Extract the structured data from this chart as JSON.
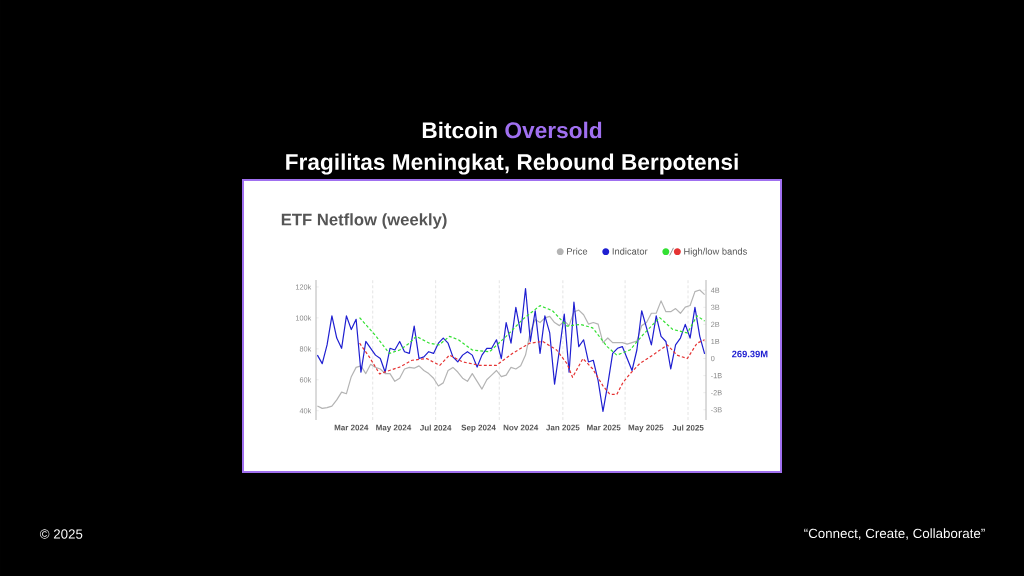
{
  "chart_data": {
    "type": "line",
    "title": "ETF Netflow (weekly)",
    "annotations": [
      "Bitcoin",
      "Oversold",
      "Fragilitas Meningkat, Rebound Berpotensi",
      "© 2025",
      "“Connect, Create, Collaborate”",
      "269.39M"
    ],
    "x": [
      "2024-01-12",
      "2024-01-19",
      "2024-01-26",
      "2024-02-02",
      "2024-02-09",
      "2024-02-16",
      "2024-02-23",
      "2024-03-01",
      "2024-03-08",
      "2024-03-15",
      "2024-03-22",
      "2024-03-29",
      "2024-04-05",
      "2024-04-12",
      "2024-04-19",
      "2024-04-26",
      "2024-05-03",
      "2024-05-10",
      "2024-05-17",
      "2024-05-24",
      "2024-05-31",
      "2024-06-07",
      "2024-06-14",
      "2024-06-21",
      "2024-06-28",
      "2024-07-05",
      "2024-07-12",
      "2024-07-19",
      "2024-07-26",
      "2024-08-02",
      "2024-08-09",
      "2024-08-16",
      "2024-08-23",
      "2024-08-30",
      "2024-09-06",
      "2024-09-13",
      "2024-09-20",
      "2024-09-27",
      "2024-10-04",
      "2024-10-11",
      "2024-10-18",
      "2024-10-25",
      "2024-11-01",
      "2024-11-08",
      "2024-11-15",
      "2024-11-22",
      "2024-11-29",
      "2024-12-06",
      "2024-12-13",
      "2024-12-20",
      "2024-12-27",
      "2025-01-03",
      "2025-01-10",
      "2025-01-17",
      "2025-01-24",
      "2025-01-31",
      "2025-02-07",
      "2025-02-14",
      "2025-02-21",
      "2025-02-28",
      "2025-03-07",
      "2025-03-14",
      "2025-03-21",
      "2025-03-28",
      "2025-04-04",
      "2025-04-11",
      "2025-04-18",
      "2025-04-25",
      "2025-05-02",
      "2025-05-09",
      "2025-05-16",
      "2025-05-23",
      "2025-05-30",
      "2025-06-06",
      "2025-06-13",
      "2025-06-20",
      "2025-06-27",
      "2025-07-04",
      "2025-07-11",
      "2025-07-18",
      "2025-07-25"
    ],
    "series": [
      {
        "name": "Price",
        "color": "#b4b4b4",
        "values": [
          43000,
          41500,
          42000,
          43000,
          47000,
          52000,
          51000,
          62000,
          68000,
          69000,
          64000,
          70000,
          68000,
          67000,
          64000,
          64000,
          59000,
          61000,
          67000,
          68000,
          67500,
          69000,
          66000,
          64000,
          61000,
          56000,
          58000,
          66000,
          68000,
          65000,
          61000,
          59000,
          64000,
          59000,
          54000,
          60000,
          63000,
          66000,
          62000,
          63000,
          68000,
          67000,
          69000,
          76000,
          91000,
          99000,
          97000,
          100000,
          101000,
          97000,
          95000,
          98000,
          95000,
          104000,
          105000,
          102000,
          96000,
          97000,
          96000,
          84000,
          87000,
          84000,
          84000,
          84000,
          83000,
          84000,
          85000,
          95000,
          97000,
          103000,
          103000,
          111000,
          104000,
          104000,
          106000,
          103000,
          107000,
          108000,
          117000,
          118000,
          115000
        ]
      },
      {
        "name": "Indicator",
        "color": "#1f1fd1",
        "axis": "y2",
        "values": [
          0.2,
          -0.3,
          0.8,
          2.5,
          1.2,
          0.6,
          2.5,
          1.7,
          2.3,
          -0.8,
          1.0,
          0.6,
          0.2,
          0.0,
          -0.8,
          0.6,
          0.5,
          1.0,
          0.4,
          0.3,
          1.9,
          0.0,
          0.1,
          0.4,
          0.3,
          0.9,
          1.2,
          0.9,
          0.1,
          -0.2,
          0.2,
          0.4,
          0.2,
          -0.5,
          0.2,
          0.6,
          0.6,
          1.1,
          0.0,
          2.1,
          0.9,
          3.0,
          1.5,
          4.1,
          1.0,
          2.8,
          0.3,
          2.5,
          1.5,
          -1.5,
          0.5,
          2.6,
          -0.8,
          3.3,
          0.7,
          1.1,
          -0.2,
          -0.1,
          -1.3,
          -3.1,
          -1.5,
          0.3,
          0.6,
          0.7,
          0.0,
          -0.7,
          0.5,
          2.8,
          1.8,
          0.8,
          2.5,
          1.3,
          1.0,
          -0.6,
          0.8,
          1.2,
          2.0,
          1.2,
          3.0,
          1.3,
          0.27
        ]
      },
      {
        "color": "#33e033",
        "axis": "y2",
        "line_style": "dashed",
        "x": [
          "2024-03-13",
          "2024-04-06",
          "2024-04-25",
          "2024-05-10",
          "2024-05-24",
          "2024-06-03",
          "2024-06-22",
          "2024-07-06",
          "2024-07-21",
          "2024-08-03",
          "2024-08-23",
          "2024-09-17",
          "2024-10-11",
          "2024-11-04",
          "2024-11-29",
          "2024-12-17",
          "2025-01-07",
          "2025-01-26",
          "2025-02-13",
          "2025-03-06",
          "2025-03-20",
          "2025-04-08",
          "2025-04-27",
          "2025-05-21",
          "2025-06-09",
          "2025-06-30",
          "2025-07-14",
          "2025-07-25"
        ],
        "values": [
          2.4,
          1.3,
          0.3,
          0.5,
          0.9,
          1.3,
          0.9,
          0.8,
          1.3,
          1.1,
          0.5,
          0.4,
          1.3,
          2.3,
          3.1,
          2.8,
          1.9,
          2.0,
          1.8,
          0.7,
          0.2,
          0.5,
          1.4,
          2.4,
          1.7,
          1.5,
          2.5,
          2.2
        ]
      },
      {
        "name": "High/low bands",
        "color": "#e53333",
        "axis": "y2",
        "line_style": "dashed",
        "x": [
          "2024-03-13",
          "2024-03-27",
          "2024-04-11",
          "2024-04-25",
          "2024-05-10",
          "2024-05-28",
          "2024-06-18",
          "2024-07-07",
          "2024-07-21",
          "2024-08-09",
          "2024-09-03",
          "2024-09-27",
          "2024-10-20",
          "2024-11-14",
          "2024-12-03",
          "2024-12-23",
          "2025-01-07",
          "2025-01-15",
          "2025-01-30",
          "2025-02-13",
          "2025-02-28",
          "2025-03-10",
          "2025-03-20",
          "2025-03-29",
          "2025-04-08",
          "2025-04-22",
          "2025-05-11",
          "2025-06-01",
          "2025-06-15",
          "2025-06-30",
          "2025-07-14",
          "2025-07-25"
        ],
        "values": [
          0.9,
          0.1,
          -0.9,
          -0.7,
          -0.5,
          -0.1,
          0.0,
          -0.4,
          0.2,
          -0.2,
          -0.4,
          -0.4,
          0.3,
          0.9,
          1.0,
          0.5,
          -0.3,
          -1.1,
          0.0,
          -0.6,
          -1.6,
          -2.1,
          -2.1,
          -1.4,
          -0.9,
          -0.3,
          0.2,
          0.8,
          0.2,
          0.0,
          0.9,
          1.1
        ]
      }
    ],
    "xlim": [
      "2024-01-10",
      "2025-07-27"
    ],
    "xticks": [
      {
        "value": "2024-03-01",
        "label": "Mar 2024"
      },
      {
        "value": "2024-05-01",
        "label": "May 2024"
      },
      {
        "value": "2024-07-01",
        "label": "Jul 2024"
      },
      {
        "value": "2024-09-01",
        "label": "Sep 2024"
      },
      {
        "value": "2024-11-01",
        "label": "Nov 2024"
      },
      {
        "value": "2025-01-01",
        "label": "Jan 2025"
      },
      {
        "value": "2025-03-01",
        "label": "Mar 2025"
      },
      {
        "value": "2025-05-01",
        "label": "May 2025"
      },
      {
        "value": "2025-07-01",
        "label": "Jul 2025"
      }
    ],
    "ylim": [
      34000,
      124500
    ],
    "yticks": [
      {
        "value": 40000,
        "label": "40k"
      },
      {
        "value": 60000,
        "label": "60k"
      },
      {
        "value": 80000,
        "label": "80k"
      },
      {
        "value": 100000,
        "label": "100k"
      },
      {
        "value": 120000,
        "label": "120k"
      }
    ],
    "y2lim": [
      -3.6,
      4.6
    ],
    "y2ticks": [
      {
        "value": -3,
        "label": "-3B"
      },
      {
        "value": -2,
        "label": "-2B"
      },
      {
        "value": -1,
        "label": "-1B"
      },
      0,
      {
        "value": 1,
        "label": "1B"
      },
      {
        "value": 2,
        "label": "2B"
      },
      {
        "value": 3,
        "label": "3B"
      },
      {
        "value": 4,
        "label": "4B"
      }
    ],
    "ref_lines": [
      {
        "axis": "x",
        "value": "2024-04-01",
        "color": "#dddddd",
        "line_style": "dashed"
      },
      {
        "axis": "x",
        "value": "2024-07-01",
        "color": "#dddddd",
        "line_style": "dashed"
      },
      {
        "axis": "x",
        "value": "2024-10-01",
        "color": "#dddddd",
        "line_style": "dashed"
      },
      {
        "axis": "x",
        "value": "2025-01-01",
        "color": "#dddddd",
        "line_style": "dashed"
      },
      {
        "axis": "x",
        "value": "2025-04-01",
        "color": "#dddddd",
        "line_style": "dashed"
      },
      {
        "axis": "x",
        "value": "2025-07-01",
        "color": "#dddddd",
        "line_style": "dashed"
      }
    ],
    "legend": "top right"
  }
}
